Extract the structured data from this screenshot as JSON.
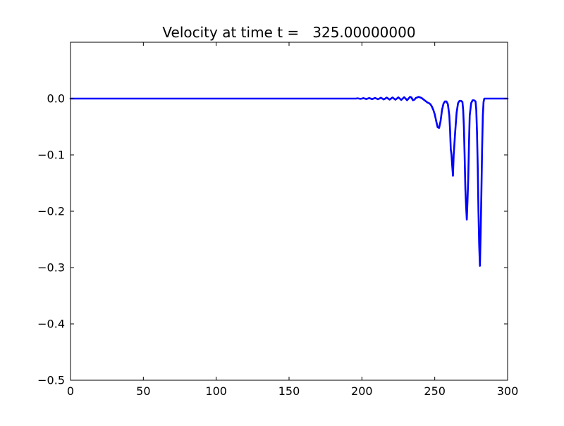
{
  "chart_data": {
    "type": "line",
    "title": "Velocity at time t =   325.00000000",
    "xlabel": "",
    "ylabel": "",
    "xlim": [
      0,
      300
    ],
    "ylim": [
      -0.5,
      0.1
    ],
    "grid": false,
    "line_color": "#0000ff",
    "x_ticks": [
      0,
      50,
      100,
      150,
      200,
      250,
      300
    ],
    "x_tick_labels": [
      "0",
      "50",
      "100",
      "150",
      "200",
      "250",
      "300"
    ],
    "y_ticks": [
      0.0,
      -0.1,
      -0.2,
      -0.3,
      -0.4,
      -0.5
    ],
    "y_tick_labels": [
      "0.0",
      "−0.1",
      "−0.2",
      "−0.3",
      "−0.4",
      "−0.5"
    ],
    "series": [
      {
        "x": [
          0,
          50,
          100,
          150,
          190,
          196,
          197,
          198,
          199,
          200,
          201,
          202,
          203,
          204,
          205,
          206,
          207,
          208,
          209,
          210,
          211,
          212,
          213,
          214,
          215,
          216,
          217,
          218,
          219,
          220,
          221,
          222,
          223,
          224,
          225,
          226,
          227,
          228,
          229,
          230,
          231,
          232,
          233,
          234,
          235,
          236,
          237,
          238,
          239,
          240,
          241,
          242,
          243,
          244,
          245,
          246,
          247,
          248,
          249,
          250,
          251,
          252,
          253,
          254,
          255,
          256,
          257,
          258,
          259,
          260,
          260.5,
          261,
          261.5,
          262,
          262.5,
          263,
          263.5,
          264,
          265,
          266,
          267,
          268,
          269,
          269.5,
          270,
          270.5,
          271,
          271.5,
          272,
          272.5,
          273,
          273.5,
          274,
          275,
          276,
          277,
          278,
          278.5,
          279,
          279.5,
          280,
          280.5,
          281,
          281.5,
          282,
          282.5,
          283,
          283.5,
          284,
          290,
          300
        ],
        "y": [
          0,
          0,
          0,
          0,
          0,
          0,
          0.0005,
          0,
          -0.0005,
          0,
          0.0008,
          0,
          -0.0008,
          0,
          0.001,
          0,
          -0.001,
          0,
          0.0012,
          0,
          -0.0012,
          0,
          0.0015,
          0,
          -0.0015,
          0,
          0.0018,
          0,
          -0.0018,
          0,
          0.002,
          0,
          -0.002,
          0,
          0.0022,
          0,
          -0.0025,
          0,
          0.0025,
          0,
          -0.003,
          0,
          0.003,
          0.002,
          -0.003,
          -0.002,
          0.001,
          0.002,
          0.003,
          0.002,
          0.001,
          -0.001,
          -0.003,
          -0.005,
          -0.007,
          -0.008,
          -0.01,
          -0.014,
          -0.02,
          -0.028,
          -0.04,
          -0.051,
          -0.052,
          -0.04,
          -0.02,
          -0.009,
          -0.005,
          -0.005,
          -0.01,
          -0.03,
          -0.055,
          -0.09,
          -0.1,
          -0.12,
          -0.137,
          -0.1,
          -0.08,
          -0.06,
          -0.025,
          -0.008,
          -0.004,
          -0.004,
          -0.006,
          -0.02,
          -0.05,
          -0.1,
          -0.16,
          -0.19,
          -0.215,
          -0.18,
          -0.14,
          -0.08,
          -0.03,
          -0.008,
          -0.003,
          -0.003,
          -0.005,
          -0.02,
          -0.06,
          -0.12,
          -0.2,
          -0.26,
          -0.297,
          -0.24,
          -0.17,
          -0.09,
          -0.03,
          -0.006,
          0,
          0,
          0
        ]
      }
    ]
  }
}
